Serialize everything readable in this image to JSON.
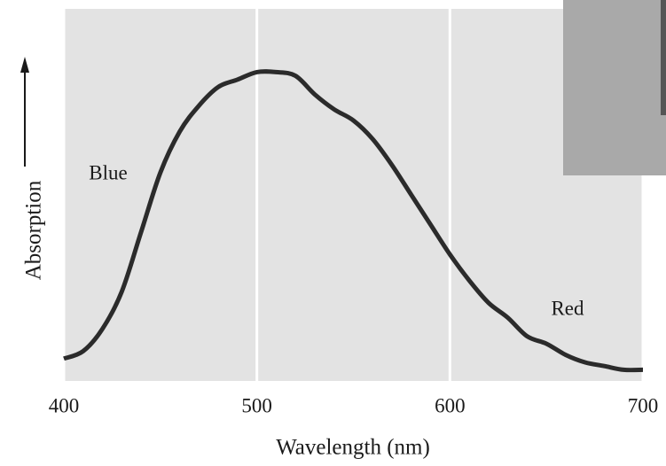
{
  "chart_data": {
    "type": "line",
    "xlabel": "Wavelength (nm)",
    "ylabel": "Absorption",
    "annotations": [
      "Blue",
      "Red"
    ],
    "x": [
      400,
      410,
      420,
      430,
      440,
      450,
      460,
      470,
      480,
      490,
      500,
      510,
      520,
      530,
      540,
      550,
      560,
      570,
      580,
      590,
      600,
      610,
      620,
      630,
      640,
      650,
      660,
      670,
      680,
      690,
      700
    ],
    "series": [
      {
        "name": "Absorption",
        "color": "#2b2b2b",
        "values": [
          0.06,
          0.08,
          0.14,
          0.24,
          0.4,
          0.56,
          0.67,
          0.74,
          0.79,
          0.81,
          0.83,
          0.83,
          0.82,
          0.77,
          0.73,
          0.7,
          0.65,
          0.58,
          0.5,
          0.42,
          0.34,
          0.27,
          0.21,
          0.17,
          0.12,
          0.1,
          0.07,
          0.05,
          0.04,
          0.03,
          0.03
        ]
      }
    ],
    "xlim": [
      400,
      700
    ],
    "xticks": [
      400,
      500,
      600,
      700
    ],
    "ylim": [
      0,
      1
    ],
    "grid": true
  }
}
